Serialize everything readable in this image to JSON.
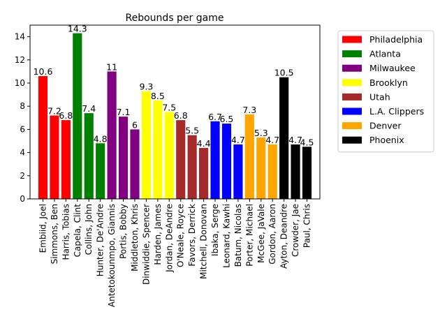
{
  "chart_data": {
    "type": "bar",
    "title": "Rebounds per game",
    "xlabel": "",
    "ylabel": "",
    "ylim": [
      0,
      15
    ],
    "yticks": [
      0,
      2,
      4,
      6,
      8,
      10,
      12,
      14
    ],
    "grid": false,
    "legend_position": "outside right, top",
    "categories": [
      "Embiid, Joel",
      "Simmons, Ben",
      "Harris, Tobias",
      "Capela, Clint",
      "Collins, John",
      "Hunter, De'Andre",
      "Antetokounmpo, Giannis",
      "Portis, Bobby",
      "Middleton, Khris",
      "Dinwiddie, Spencer",
      "Harden, James",
      "Jordan, DeAndre",
      "O'Neale, Royce",
      "Favors, Derrick",
      "Mitchell, Donovan",
      "Ibaka, Serge",
      "Leonard, Kawhi",
      "Batum, Nicolas",
      "Porter, Michael",
      "McGee, JaVale",
      "Gordon, Aaron",
      "Ayton, Deandre",
      "Crowder, Jae",
      "Paul, Chris"
    ],
    "values": [
      10.6,
      7.2,
      6.8,
      14.3,
      7.4,
      4.8,
      11,
      7.1,
      6,
      9.3,
      8.5,
      7.5,
      6.8,
      5.5,
      4.4,
      6.7,
      6.5,
      4.7,
      7.3,
      5.3,
      4.7,
      10.5,
      4.7,
      4.5
    ],
    "value_labels": [
      "10.6",
      "7.2",
      "6.8",
      "14.3",
      "7.4",
      "4.8",
      "11",
      "7.1",
      "6",
      "9.3",
      "8.5",
      "7.5",
      "6.8",
      "5.5",
      "4.4",
      "6.7",
      "6.5",
      "4.7",
      "7.3",
      "5.3",
      "4.7",
      "10.5",
      "4.7",
      "4.5"
    ],
    "groups": [
      {
        "name": "Philadelphia",
        "color": "#ff0000",
        "count": 3
      },
      {
        "name": "Atlanta",
        "color": "#008000",
        "count": 3
      },
      {
        "name": "Milwaukee",
        "color": "#800080",
        "count": 3
      },
      {
        "name": "Brooklyn",
        "color": "#ffff00",
        "count": 3
      },
      {
        "name": "Utah",
        "color": "#a52a2a",
        "count": 3
      },
      {
        "name": "L.A. Clippers",
        "color": "#0000ff",
        "count": 3
      },
      {
        "name": "Denver",
        "color": "#ffa500",
        "count": 3
      },
      {
        "name": "Phoenix",
        "color": "#000000",
        "count": 3
      }
    ]
  }
}
